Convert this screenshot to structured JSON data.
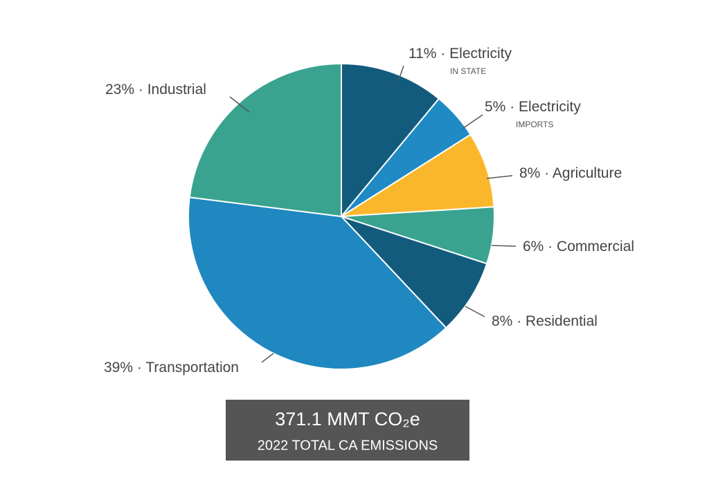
{
  "chart_data": {
    "type": "pie",
    "categories": [
      "Electricity",
      "Electricity",
      "Agriculture",
      "Commercial",
      "Residential",
      "Transportation",
      "Industrial"
    ],
    "sublabels": [
      "IN STATE",
      "IMPORTS",
      null,
      null,
      null,
      null,
      null
    ],
    "values": [
      11,
      5,
      8,
      6,
      8,
      39,
      23
    ],
    "value_labels": [
      "11%",
      "5%",
      "8%",
      "6%",
      "8%",
      "39%",
      "23%"
    ],
    "separator": "·",
    "colors": [
      "#135b7d",
      "#1f8ac3",
      "#fbb72b",
      "#3aa38f",
      "#135b7d",
      "#1f88c0",
      "#3aa38f"
    ],
    "total": 371.1,
    "total_unit": "MMT CO₂e",
    "subtitle": "2022 TOTAL CA EMISSIONS"
  }
}
